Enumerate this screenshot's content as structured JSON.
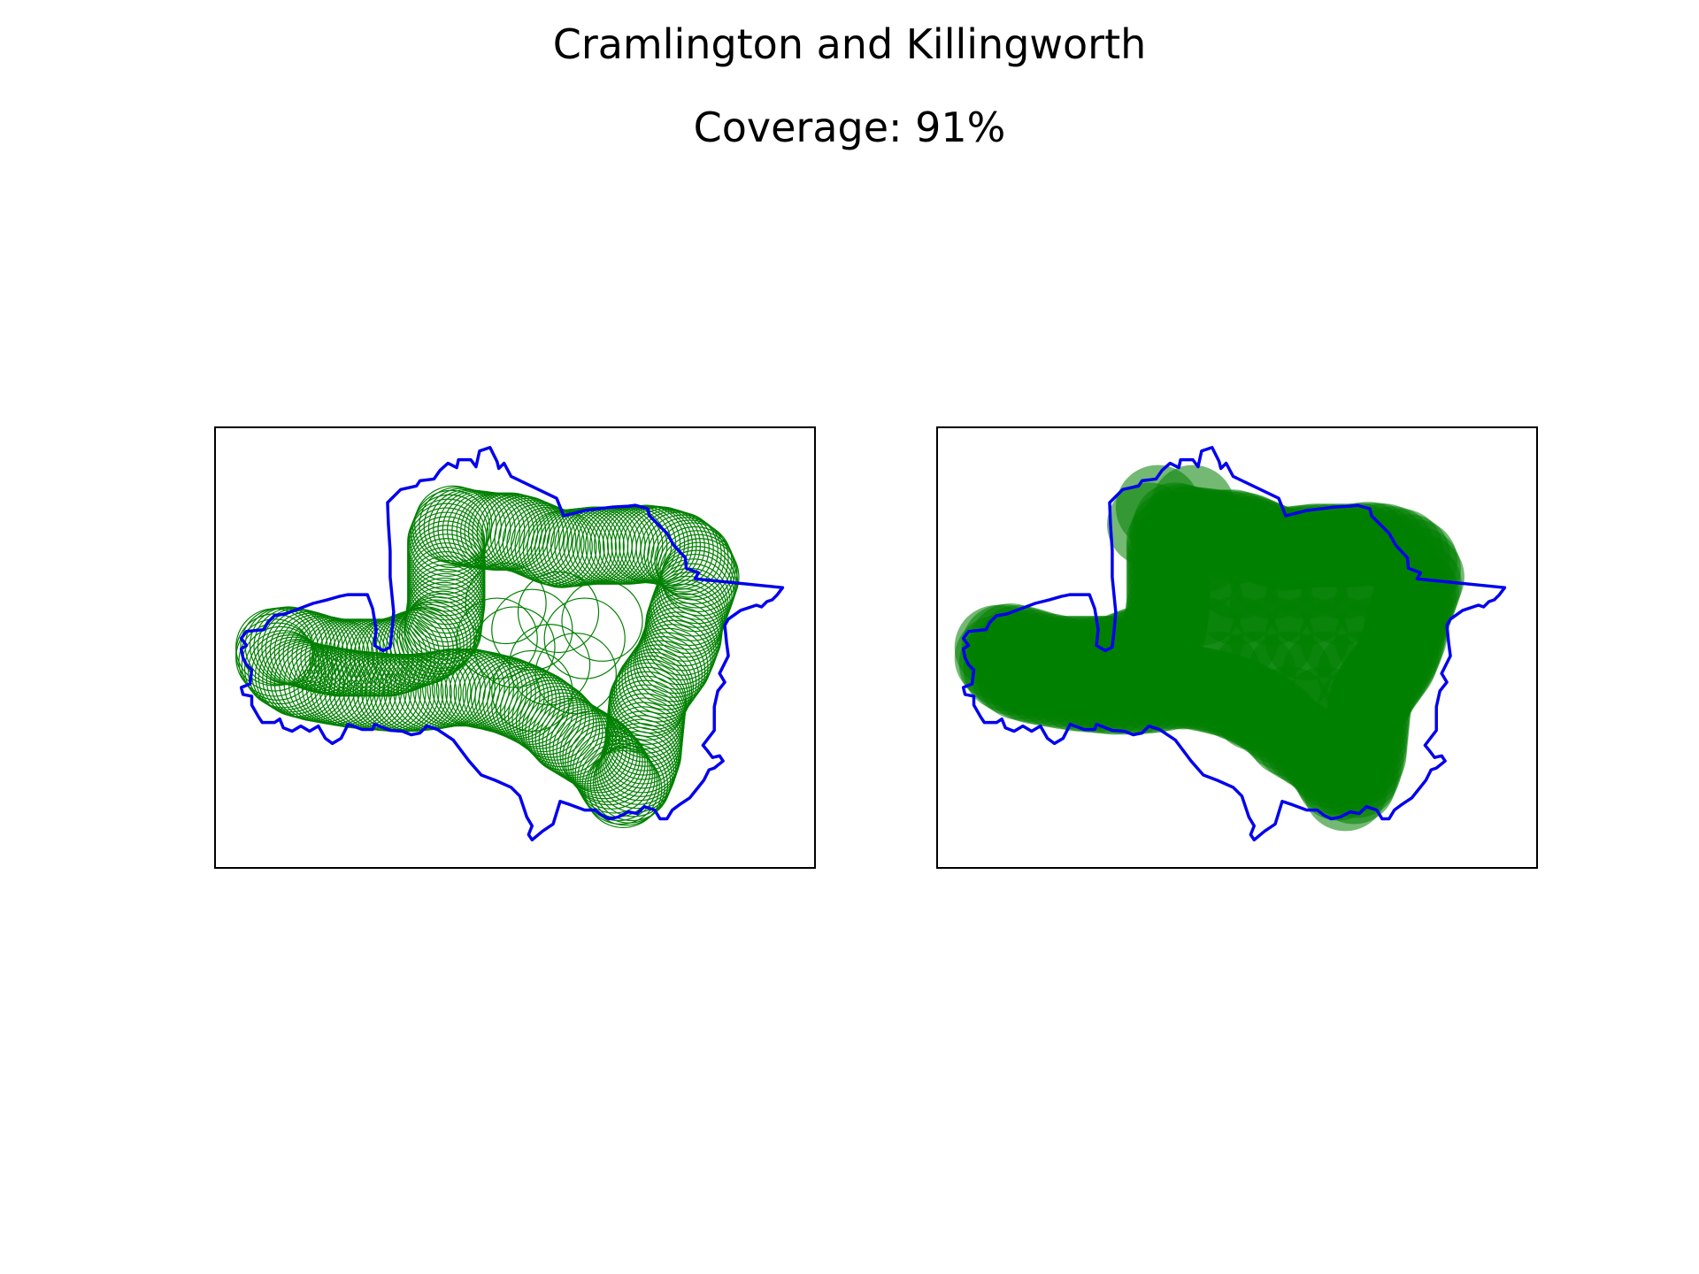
{
  "figure": {
    "title": "Cramlington and Killingworth",
    "subtitle": "Coverage: 91%",
    "colors": {
      "boundary": "#0000ee",
      "coverage": "#008000",
      "frame": "#000000",
      "background": "#ffffff"
    }
  },
  "panels": [
    {
      "name": "coverage-outline-view",
      "style": "circle-outlines"
    },
    {
      "name": "coverage-filled-view",
      "style": "filled-circles"
    }
  ]
}
